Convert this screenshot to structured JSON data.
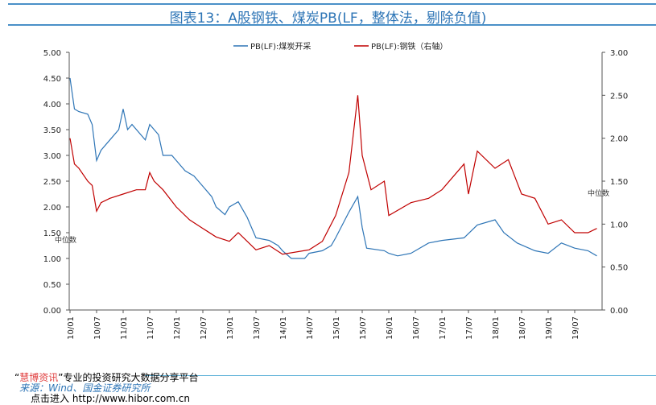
{
  "title": "图表13：A股钢铁、煤炭PB(LF，整体法，剔除负值)",
  "chart_data": {
    "type": "line",
    "title": "图表13：A股钢铁、煤炭PB(LF，整体法，剔除负值)",
    "x_tick_labels": [
      "10/01",
      "10/07",
      "11/01",
      "11/07",
      "12/01",
      "12/07",
      "13/01",
      "13/07",
      "14/01",
      "14/07",
      "15/01",
      "15/07",
      "16/01",
      "16/07",
      "17/01",
      "17/07",
      "18/01",
      "18/07",
      "19/01",
      "19/07"
    ],
    "y_left": {
      "range": [
        0,
        5
      ],
      "ticks": [
        "0.00",
        "0.50",
        "1.00",
        "1.50",
        "2.00",
        "2.50",
        "3.00",
        "3.50",
        "4.00",
        "4.50",
        "5.00"
      ]
    },
    "y_right": {
      "range": [
        0,
        3
      ],
      "ticks": [
        "0.00",
        "0.50",
        "1.00",
        "1.50",
        "2.00",
        "2.50",
        "3.00"
      ]
    },
    "legend_placement": "top",
    "annotations": [
      "中位数",
      "中位数"
    ],
    "series": [
      {
        "name": "PB(LF):煤炭开采",
        "axis": "left",
        "color": "#2e75b6",
        "x": [
          "2010-01",
          "2010-02",
          "2010-03",
          "2010-05",
          "2010-06",
          "2010-07",
          "2010-08",
          "2010-10",
          "2010-12",
          "2011-01",
          "2011-02",
          "2011-03",
          "2011-05",
          "2011-06",
          "2011-07",
          "2011-09",
          "2011-10",
          "2011-12",
          "2012-01",
          "2012-03",
          "2012-05",
          "2012-07",
          "2012-09",
          "2012-10",
          "2012-12",
          "2013-01",
          "2013-03",
          "2013-05",
          "2013-06",
          "2013-07",
          "2013-10",
          "2013-12",
          "2014-01",
          "2014-03",
          "2014-06",
          "2014-07",
          "2014-10",
          "2014-12",
          "2015-01",
          "2015-04",
          "2015-06",
          "2015-07",
          "2015-08",
          "2015-12",
          "2016-01",
          "2016-03",
          "2016-06",
          "2016-10",
          "2017-01",
          "2017-06",
          "2017-09",
          "2018-01",
          "2018-03",
          "2018-06",
          "2018-10",
          "2019-01",
          "2019-04",
          "2019-07",
          "2019-10",
          "2019-12"
        ],
        "y": [
          4.5,
          3.9,
          3.85,
          3.8,
          3.6,
          2.9,
          3.1,
          3.3,
          3.5,
          3.9,
          3.5,
          3.6,
          3.4,
          3.3,
          3.6,
          3.4,
          3.0,
          3.0,
          2.9,
          2.7,
          2.6,
          2.4,
          2.2,
          2.0,
          1.85,
          2.0,
          2.1,
          1.8,
          1.6,
          1.4,
          1.35,
          1.25,
          1.15,
          1.0,
          1.0,
          1.1,
          1.15,
          1.25,
          1.4,
          1.9,
          2.2,
          1.6,
          1.2,
          1.15,
          1.1,
          1.05,
          1.1,
          1.3,
          1.35,
          1.4,
          1.65,
          1.75,
          1.5,
          1.3,
          1.15,
          1.1,
          1.3,
          1.2,
          1.15,
          1.05
        ]
      },
      {
        "name": "PB(LF):钢铁（右轴）",
        "axis": "right",
        "color": "#c00000",
        "x": [
          "2010-01",
          "2010-02",
          "2010-03",
          "2010-05",
          "2010-06",
          "2010-07",
          "2010-08",
          "2010-10",
          "2011-01",
          "2011-04",
          "2011-06",
          "2011-07",
          "2011-08",
          "2011-10",
          "2012-01",
          "2012-04",
          "2012-07",
          "2012-10",
          "2013-01",
          "2013-03",
          "2013-07",
          "2013-10",
          "2014-01",
          "2014-07",
          "2014-10",
          "2015-01",
          "2015-04",
          "2015-06",
          "2015-07",
          "2015-09",
          "2015-12",
          "2016-01",
          "2016-06",
          "2016-10",
          "2017-01",
          "2017-06",
          "2017-07",
          "2017-09",
          "2018-01",
          "2018-04",
          "2018-07",
          "2018-10",
          "2019-01",
          "2019-04",
          "2019-07",
          "2019-10",
          "2019-12"
        ],
        "y": [
          2.0,
          1.7,
          1.65,
          1.5,
          1.45,
          1.15,
          1.25,
          1.3,
          1.35,
          1.4,
          1.4,
          1.6,
          1.5,
          1.4,
          1.2,
          1.05,
          0.95,
          0.85,
          0.8,
          0.9,
          0.7,
          0.75,
          0.65,
          0.7,
          0.8,
          1.1,
          1.6,
          2.5,
          1.8,
          1.4,
          1.5,
          1.1,
          1.25,
          1.3,
          1.4,
          1.7,
          1.35,
          1.85,
          1.65,
          1.75,
          1.35,
          1.3,
          1.0,
          1.05,
          0.9,
          0.9,
          0.95
        ]
      }
    ]
  },
  "footer": {
    "brand": "慧博资讯",
    "quote_open": "“",
    "quote_close": "”",
    "slogan": "专业的投资研究大数据分享平台",
    "source": "来源：Wind、国金证券研究所",
    "enter": "点击进入",
    "url": "http://www.hibor.com.cn"
  }
}
